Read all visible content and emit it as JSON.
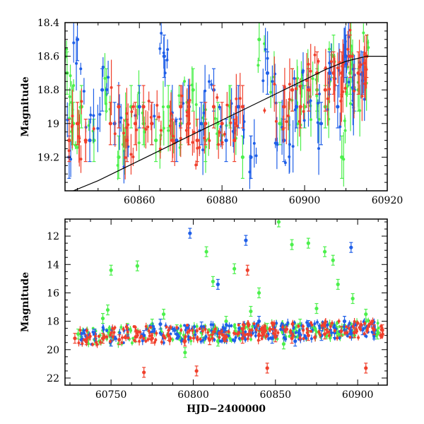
{
  "colors": {
    "green": "#4cf04c",
    "blue": "#1f5fe8",
    "red": "#f0402c",
    "axis": "#000000"
  },
  "chart_data": [
    {
      "type": "scatter",
      "title": "",
      "xlabel": "",
      "ylabel": "Magnitude",
      "xlim": [
        60842,
        60920
      ],
      "ylim": [
        19.4,
        18.4
      ],
      "y_inverted": true,
      "xticks": [
        60860,
        60880,
        60900,
        60920
      ],
      "yticks": [
        18.4,
        18.6,
        18.8,
        19,
        19.2
      ],
      "ytick_labels": [
        "18.4",
        "18.6",
        "18.8",
        "19",
        "19.2"
      ],
      "grid": false,
      "legend": "none",
      "series": [
        {
          "color": "green",
          "points": [
            [
              60842.5,
              18.7
            ],
            [
              60844,
              19.0
            ],
            [
              60846,
              18.9
            ],
            [
              60849,
              19.1
            ],
            [
              60852,
              18.8
            ],
            [
              60855,
              19.2
            ],
            [
              60858,
              18.9
            ],
            [
              60861,
              19.0
            ],
            [
              60864,
              19.1
            ],
            [
              60867,
              18.9
            ],
            [
              60870,
              19.0
            ],
            [
              60873,
              18.8
            ],
            [
              60876,
              19.1
            ],
            [
              60879,
              19.0
            ],
            [
              60882,
              18.9
            ],
            [
              60885,
              19.2
            ],
            [
              60889,
              18.5
            ],
            [
              60894,
              19.0
            ],
            [
              60897,
              18.8
            ],
            [
              60900,
              18.9
            ],
            [
              60903,
              18.8
            ],
            [
              60905,
              18.9
            ],
            [
              60907,
              18.6
            ],
            [
              60909,
              19.2
            ],
            [
              60911,
              18.7
            ],
            [
              60913,
              18.8
            ],
            [
              60915,
              18.6
            ]
          ]
        },
        {
          "color": "blue",
          "points": [
            [
              60843,
              19.2
            ],
            [
              60845,
              18.5
            ],
            [
              60848,
              19.1
            ],
            [
              60851,
              18.8
            ],
            [
              60854,
              19.0
            ],
            [
              60857,
              19.1
            ],
            [
              60860,
              18.9
            ],
            [
              60863,
              19.0
            ],
            [
              60866,
              18.6
            ],
            [
              60869,
              19.1
            ],
            [
              60872,
              18.9
            ],
            [
              60875,
              19.0
            ],
            [
              60878,
              18.8
            ],
            [
              60881,
              19.1
            ],
            [
              60884,
              18.9
            ],
            [
              60887,
              19.2
            ],
            [
              60891,
              18.7
            ],
            [
              60895,
              19.1
            ],
            [
              60898,
              18.9
            ],
            [
              60901,
              18.8
            ],
            [
              60904,
              19.0
            ],
            [
              60906,
              18.7
            ],
            [
              60908,
              18.9
            ],
            [
              60910,
              18.6
            ],
            [
              60912,
              18.8
            ],
            [
              60914,
              18.7
            ]
          ]
        },
        {
          "color": "red",
          "points": [
            [
              60843,
              19.1
            ],
            [
              60845,
              19.0
            ],
            [
              60847,
              19.1
            ],
            [
              60853,
              19.0
            ],
            [
              60855,
              18.9
            ],
            [
              60857,
              19.1
            ],
            [
              60859,
              19.0
            ],
            [
              60861,
              18.9
            ],
            [
              60863,
              19.0
            ],
            [
              60868,
              19.1
            ],
            [
              60870,
              18.9
            ],
            [
              60872,
              19.0
            ],
            [
              60874,
              19.1
            ],
            [
              60876,
              19.0
            ],
            [
              60878,
              18.9
            ],
            [
              60880,
              19.0
            ],
            [
              60883,
              19.1
            ],
            [
              60885,
              18.9
            ],
            [
              60895,
              18.9
            ],
            [
              60897,
              18.8
            ],
            [
              60899,
              18.9
            ],
            [
              60901,
              18.8
            ],
            [
              60903,
              18.7
            ],
            [
              60905,
              18.8
            ],
            [
              60907,
              18.7
            ],
            [
              60909,
              18.7
            ],
            [
              60911,
              18.6
            ],
            [
              60913,
              18.7
            ],
            [
              60915,
              18.6
            ]
          ]
        }
      ],
      "model_curve": [
        [
          60842,
          19.42
        ],
        [
          60850,
          19.34
        ],
        [
          60860,
          19.22
        ],
        [
          60870,
          19.1
        ],
        [
          60880,
          18.98
        ],
        [
          60890,
          18.86
        ],
        [
          60900,
          18.74
        ],
        [
          60905,
          18.68
        ],
        [
          60910,
          18.63
        ],
        [
          60915,
          18.6
        ],
        [
          60920,
          18.6
        ]
      ]
    },
    {
      "type": "scatter",
      "title": "",
      "xlabel": "HJD−2400000",
      "ylabel": "Magnitude",
      "xlim": [
        60722,
        60918
      ],
      "ylim": [
        22.5,
        10.8
      ],
      "y_inverted": true,
      "xticks": [
        60750,
        60800,
        60850,
        60900
      ],
      "yticks": [
        12,
        14,
        16,
        18,
        20,
        22
      ],
      "ytick_labels": [
        "12",
        "14",
        "16",
        "18",
        "20",
        "22"
      ],
      "grid": false,
      "legend": "none",
      "series": [
        {
          "color": "green",
          "points": [
            [
              60730,
              18.9
            ],
            [
              60740,
              19.3
            ],
            [
              60745,
              17.8
            ],
            [
              60748,
              17.2
            ],
            [
              60750,
              14.4
            ],
            [
              60760,
              18.5
            ],
            [
              60766,
              14.1
            ],
            [
              60775,
              18.2
            ],
            [
              60782,
              17.5
            ],
            [
              60790,
              18.6
            ],
            [
              60795,
              20.2
            ],
            [
              60805,
              18.8
            ],
            [
              60808,
              13.1
            ],
            [
              60812,
              15.2
            ],
            [
              60815,
              19.4
            ],
            [
              60820,
              18.0
            ],
            [
              60825,
              14.3
            ],
            [
              60830,
              18.9
            ],
            [
              60835,
              17.3
            ],
            [
              60840,
              16.0
            ],
            [
              60845,
              18.5
            ],
            [
              60852,
              11.0
            ],
            [
              60855,
              19.6
            ],
            [
              60860,
              12.6
            ],
            [
              60865,
              18.2
            ],
            [
              60870,
              12.5
            ],
            [
              60875,
              17.1
            ],
            [
              60880,
              13.1
            ],
            [
              60885,
              13.7
            ],
            [
              60888,
              15.4
            ],
            [
              60892,
              18.6
            ],
            [
              60897,
              16.4
            ],
            [
              60905,
              17.5
            ],
            [
              60912,
              18.9
            ]
          ]
        },
        {
          "color": "blue",
          "points": [
            [
              60732,
              19.3
            ],
            [
              60740,
              18.9
            ],
            [
              60750,
              19.4
            ],
            [
              60760,
              18.6
            ],
            [
              60770,
              19.0
            ],
            [
              60780,
              18.2
            ],
            [
              60790,
              18.9
            ],
            [
              60798,
              11.8
            ],
            [
              60805,
              18.4
            ],
            [
              60815,
              15.4
            ],
            [
              60820,
              19.0
            ],
            [
              60828,
              18.5
            ],
            [
              60832,
              12.3
            ],
            [
              60840,
              18.0
            ],
            [
              60848,
              19.2
            ],
            [
              60855,
              18.6
            ],
            [
              60862,
              19.4
            ],
            [
              60870,
              18.3
            ],
            [
              60878,
              19.0
            ],
            [
              60886,
              18.8
            ],
            [
              60892,
              18.0
            ],
            [
              60896,
              12.8
            ],
            [
              60903,
              18.6
            ],
            [
              60910,
              18.9
            ]
          ]
        },
        {
          "color": "red",
          "points": [
            [
              60728,
              19.2
            ],
            [
              60735,
              19.3
            ],
            [
              60745,
              19.2
            ],
            [
              60755,
              19.3
            ],
            [
              60765,
              19.1
            ],
            [
              60770,
              21.6
            ],
            [
              60775,
              19.2
            ],
            [
              60785,
              19.0
            ],
            [
              60795,
              19.4
            ],
            [
              60802,
              21.5
            ],
            [
              60810,
              19.3
            ],
            [
              60820,
              19.1
            ],
            [
              60830,
              19.2
            ],
            [
              60833,
              14.4
            ],
            [
              60840,
              19.0
            ],
            [
              60845,
              21.3
            ],
            [
              60850,
              19.1
            ],
            [
              60860,
              19.2
            ],
            [
              60870,
              19.0
            ],
            [
              60880,
              18.9
            ],
            [
              60890,
              18.7
            ],
            [
              60898,
              18.8
            ],
            [
              60905,
              21.3
            ],
            [
              60910,
              18.6
            ],
            [
              60915,
              18.6
            ]
          ]
        }
      ]
    }
  ]
}
